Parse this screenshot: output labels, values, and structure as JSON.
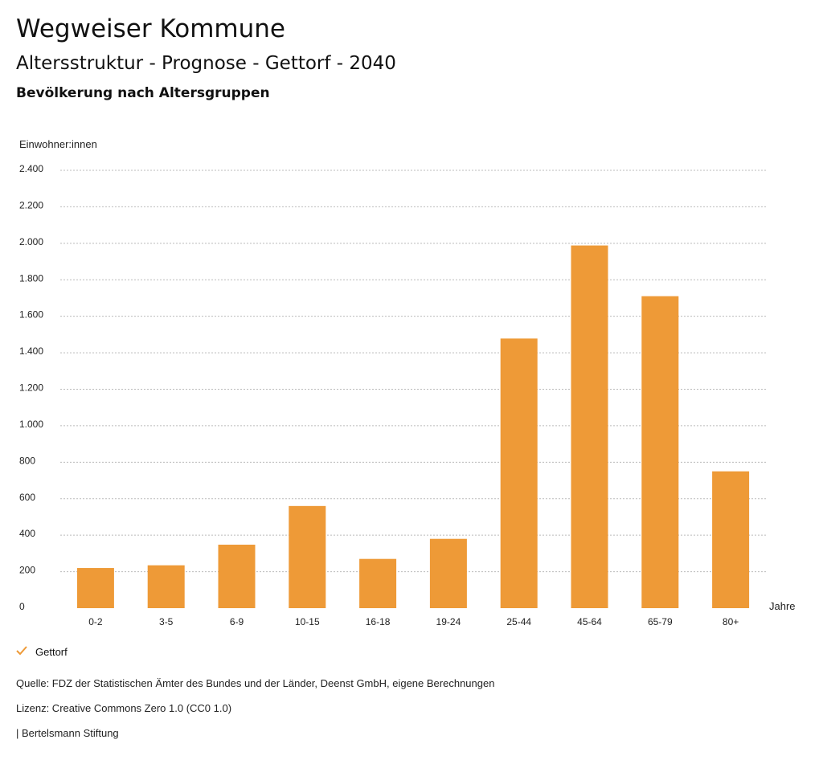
{
  "header": {
    "title": "Wegweiser Kommune",
    "subtitle": "Altersstruktur - Prognose - Gettorf - 2040",
    "subsubtitle": "Bevölkerung nach Altersgruppen"
  },
  "chart_data": {
    "type": "bar",
    "ylabel": "Einwohner:innen",
    "xlabel": "Jahre",
    "ylim": [
      0,
      2400
    ],
    "yticks": [
      0,
      200,
      400,
      600,
      800,
      1000,
      1200,
      1400,
      1600,
      1800,
      2000,
      2200,
      2400
    ],
    "ytick_labels": [
      "0",
      "200",
      "400",
      "600",
      "800",
      "1.000",
      "1.200",
      "1.400",
      "1.600",
      "1.800",
      "2.000",
      "2.200",
      "2.400"
    ],
    "categories": [
      "0-2",
      "3-5",
      "6-9",
      "10-15",
      "16-18",
      "19-24",
      "25-44",
      "45-64",
      "65-79",
      "80+"
    ],
    "series": [
      {
        "name": "Gettorf",
        "values": [
          220,
          235,
          348,
          560,
          270,
          380,
          1478,
          1988,
          1710,
          750
        ],
        "color": "#ee9a37"
      }
    ],
    "grid": true,
    "legend_position": "bottom-left"
  },
  "legend": {
    "label": "Gettorf",
    "icon": "check-icon",
    "color": "#ee9a37"
  },
  "footer": {
    "source": "Quelle: FDZ der Statistischen Ämter des Bundes und der Länder, Deenst GmbH, eigene Berechnungen",
    "license": "Lizenz: Creative Commons Zero 1.0 (CC0 1.0)",
    "publisher": "| Bertelsmann Stiftung"
  }
}
